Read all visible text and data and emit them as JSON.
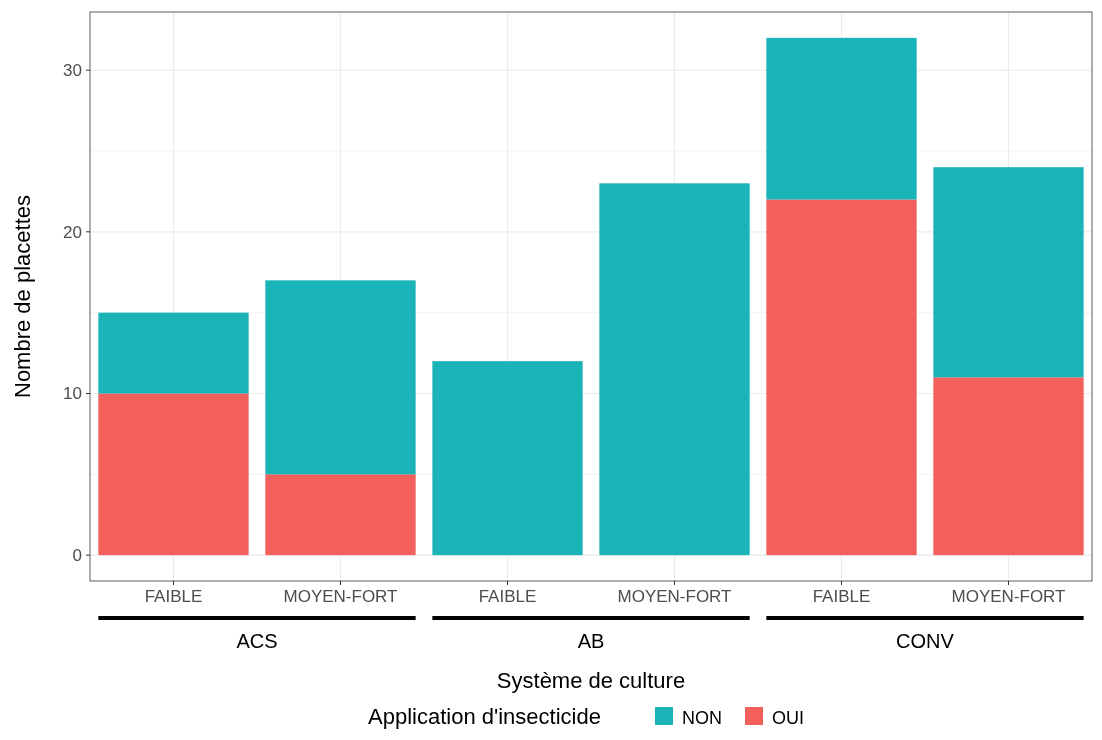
{
  "chart_data": {
    "type": "bar",
    "stacked": true,
    "xlabel": "Système de culture",
    "ylabel": "Nombre de placettes",
    "legend_title": "Application d'insecticide",
    "legend": "bottom",
    "grid": true,
    "categories": [
      "FAIBLE",
      "MOYEN-FORT",
      "FAIBLE",
      "MOYEN-FORT",
      "FAIBLE",
      "MOYEN-FORT"
    ],
    "series": [
      {
        "name": "OUI",
        "color": "#f35f5b",
        "values": [
          10,
          5,
          0,
          0,
          22,
          11
        ]
      },
      {
        "name": "NON",
        "color": "#19b3b8",
        "values": [
          5,
          12,
          12,
          23,
          10,
          13
        ]
      }
    ],
    "ylim": [
      -1.6,
      33.6
    ],
    "yticks": [
      0,
      {
        "value": 5,
        "label": null
      },
      10,
      {
        "value": 15,
        "label": null
      },
      20,
      {
        "value": 25,
        "label": null
      },
      30
    ],
    "annotations": [
      "ACS",
      "AB",
      "CONV"
    ]
  }
}
